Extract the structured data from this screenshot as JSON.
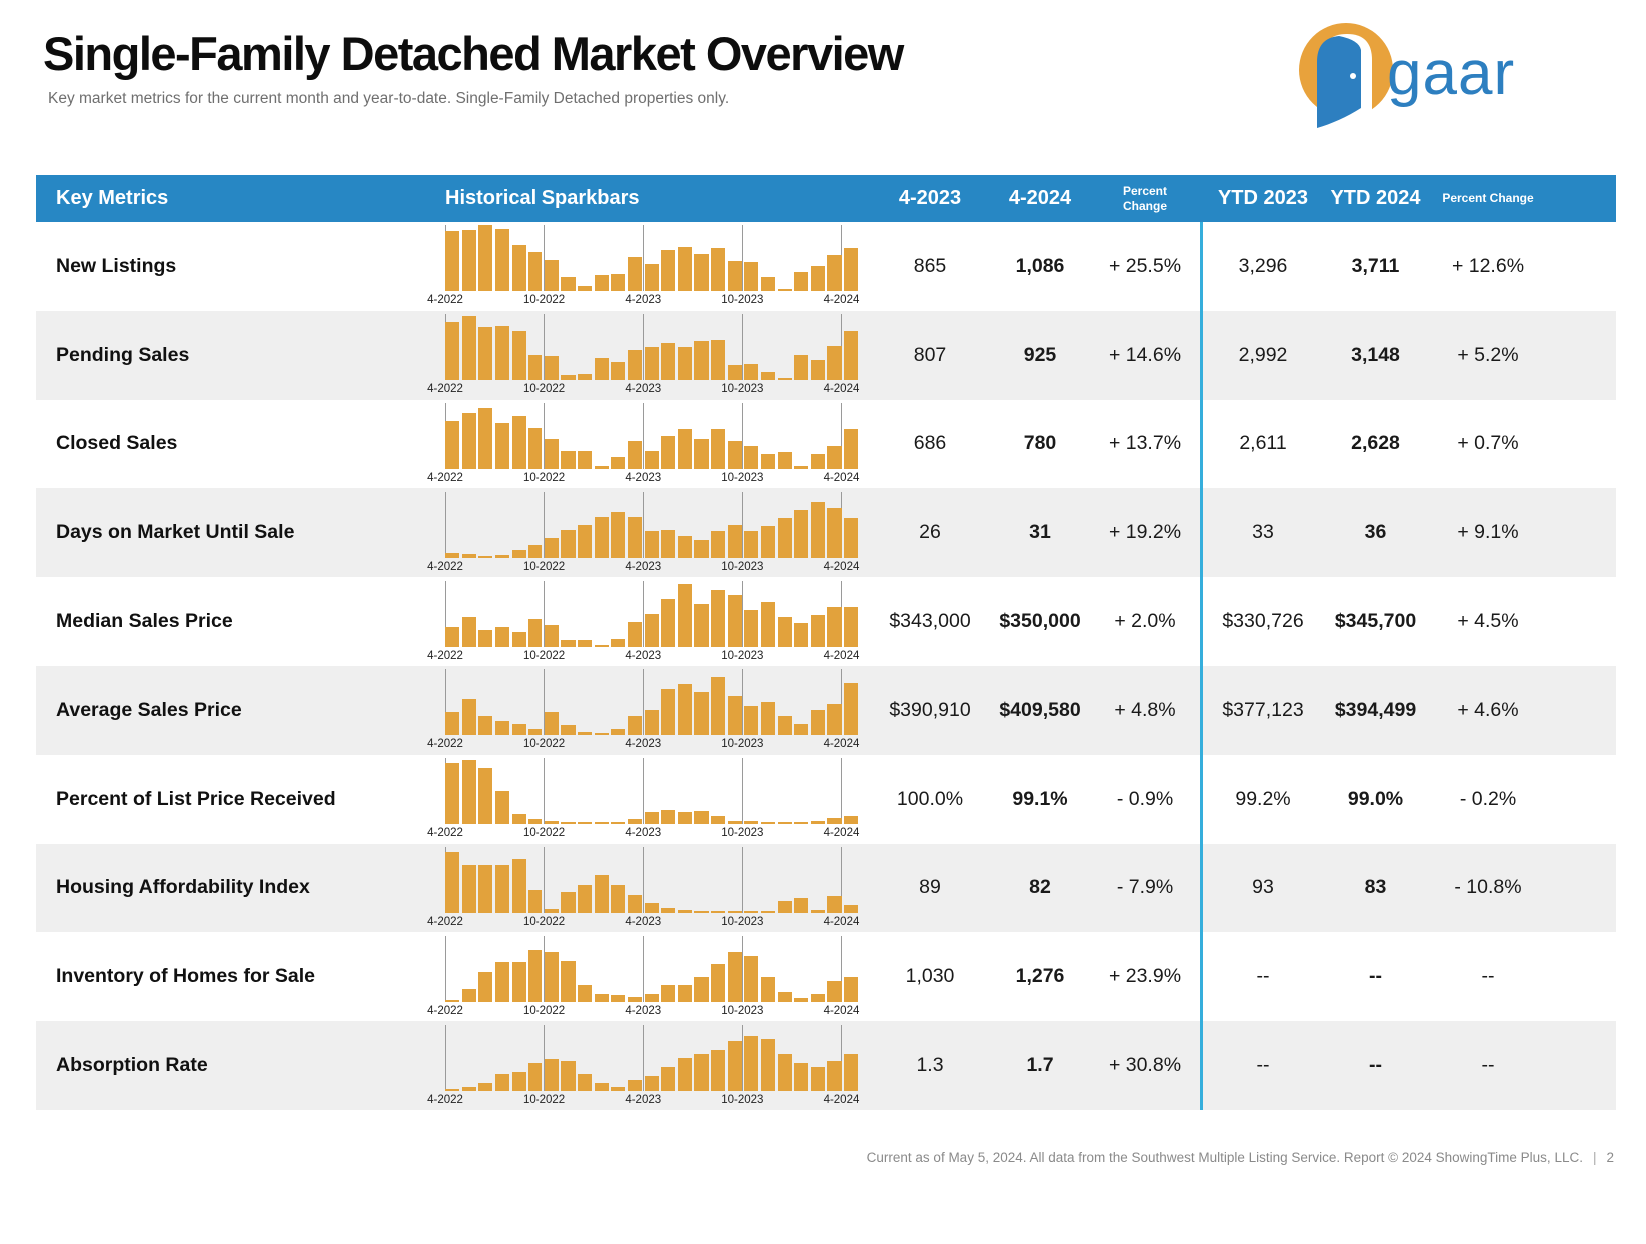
{
  "header": {
    "title": "Single-Family Detached Market Overview",
    "subtitle": "Key market metrics for the current month and year-to-date. Single-Family Detached properties only.",
    "logo_text": "gaar"
  },
  "colors": {
    "header_bg": "#2787C4",
    "bar_orange": "#E2A23C",
    "divider_cyan": "#35AEDC",
    "stripe_gray": "#EFEFEF",
    "logo_orange": "#E8A23C",
    "logo_blue": "#2D7FC0"
  },
  "table": {
    "columns": {
      "key_metrics": "Key Metrics",
      "sparkbars": "Historical Sparkbars",
      "prev_month": "4-2023",
      "cur_month": "4-2024",
      "pct_change": "Percent Change",
      "ytd_prev": "YTD 2023",
      "ytd_cur": "YTD 2024",
      "ytd_pct_change": "Percent Change"
    },
    "tick_labels": [
      "4-2022",
      "10-2022",
      "4-2023",
      "10-2023",
      "4-2024"
    ],
    "rows": [
      {
        "metric": "New Listings",
        "v1": "865",
        "v2": "1,086",
        "pct": "+ 25.5%",
        "y1": "3,296",
        "y2": "3,711",
        "ypct": "+ 12.6%",
        "bars": [
          0.92,
          0.93,
          1.0,
          0.95,
          0.7,
          0.6,
          0.48,
          0.22,
          0.08,
          0.25,
          0.27,
          0.52,
          0.42,
          0.63,
          0.68,
          0.56,
          0.66,
          0.46,
          0.45,
          0.22,
          0.04,
          0.3,
          0.38,
          0.55,
          0.66
        ]
      },
      {
        "metric": "Pending Sales",
        "v1": "807",
        "v2": "925",
        "pct": "+ 14.6%",
        "y1": "2,992",
        "y2": "3,148",
        "ypct": "+ 5.2%",
        "bars": [
          0.88,
          0.97,
          0.8,
          0.82,
          0.75,
          0.38,
          0.37,
          0.08,
          0.09,
          0.33,
          0.28,
          0.46,
          0.5,
          0.57,
          0.5,
          0.6,
          0.61,
          0.23,
          0.24,
          0.12,
          0.03,
          0.38,
          0.3,
          0.52,
          0.75
        ]
      },
      {
        "metric": "Closed Sales",
        "v1": "686",
        "v2": "780",
        "pct": "+ 13.7%",
        "y1": "2,611",
        "y2": "2,628",
        "ypct": "+ 0.7%",
        "bars": [
          0.72,
          0.85,
          0.92,
          0.7,
          0.8,
          0.62,
          0.45,
          0.27,
          0.27,
          0.05,
          0.18,
          0.42,
          0.28,
          0.5,
          0.6,
          0.45,
          0.6,
          0.42,
          0.35,
          0.22,
          0.25,
          0.04,
          0.22,
          0.35,
          0.6
        ]
      },
      {
        "metric": "Days on Market Until Sale",
        "v1": "26",
        "v2": "31",
        "pct": "+ 19.2%",
        "y1": "33",
        "y2": "36",
        "ypct": "+ 9.1%",
        "bars": [
          0.08,
          0.06,
          0.02,
          0.04,
          0.12,
          0.2,
          0.3,
          0.42,
          0.5,
          0.62,
          0.7,
          0.62,
          0.4,
          0.42,
          0.33,
          0.27,
          0.4,
          0.5,
          0.4,
          0.48,
          0.6,
          0.72,
          0.85,
          0.75,
          0.6
        ]
      },
      {
        "metric": "Median Sales Price",
        "v1": "$343,000",
        "v2": "$350,000",
        "pct": "+ 2.0%",
        "y1": "$330,726",
        "y2": "$345,700",
        "ypct": "+ 4.5%",
        "bars": [
          0.3,
          0.45,
          0.25,
          0.3,
          0.22,
          0.42,
          0.32,
          0.1,
          0.1,
          0.02,
          0.12,
          0.38,
          0.5,
          0.72,
          0.95,
          0.65,
          0.85,
          0.78,
          0.55,
          0.68,
          0.45,
          0.35,
          0.48,
          0.6,
          0.6
        ]
      },
      {
        "metric": "Average Sales Price",
        "v1": "$390,910",
        "v2": "$409,580",
        "pct": "+ 4.8%",
        "y1": "$377,123",
        "y2": "$394,499",
        "ypct": "+ 4.6%",
        "bars": [
          0.35,
          0.55,
          0.3,
          0.22,
          0.18,
          0.1,
          0.35,
          0.15,
          0.05,
          0.03,
          0.1,
          0.3,
          0.38,
          0.7,
          0.78,
          0.65,
          0.88,
          0.6,
          0.45,
          0.5,
          0.3,
          0.18,
          0.38,
          0.48,
          0.8
        ]
      },
      {
        "metric": "Percent of List Price Received",
        "v1": "100.0%",
        "v2": "99.1%",
        "pct": "- 0.9%",
        "y1": "99.2%",
        "y2": "99.0%",
        "ypct": "- 0.2%",
        "bars": [
          0.93,
          0.97,
          0.85,
          0.5,
          0.15,
          0.08,
          0.05,
          0.03,
          0.02,
          0.02,
          0.03,
          0.08,
          0.18,
          0.22,
          0.18,
          0.2,
          0.12,
          0.05,
          0.05,
          0.03,
          0.02,
          0.02,
          0.05,
          0.1,
          0.12
        ]
      },
      {
        "metric": "Housing Affordability Index",
        "v1": "89",
        "v2": "82",
        "pct": "- 7.9%",
        "y1": "93",
        "y2": "83",
        "ypct": "- 10.8%",
        "bars": [
          0.92,
          0.72,
          0.72,
          0.72,
          0.82,
          0.35,
          0.06,
          0.32,
          0.42,
          0.58,
          0.42,
          0.28,
          0.15,
          0.08,
          0.04,
          0.03,
          0.03,
          0.03,
          0.03,
          0.03,
          0.18,
          0.22,
          0.04,
          0.25,
          0.12
        ]
      },
      {
        "metric": "Inventory of Homes for Sale",
        "v1": "1,030",
        "v2": "1,276",
        "pct": "+ 23.9%",
        "y1": "--",
        "y2": "--",
        "ypct": "--",
        "bars": [
          0.03,
          0.2,
          0.45,
          0.6,
          0.6,
          0.78,
          0.75,
          0.62,
          0.25,
          0.12,
          0.1,
          0.08,
          0.12,
          0.25,
          0.25,
          0.38,
          0.58,
          0.75,
          0.7,
          0.38,
          0.15,
          0.06,
          0.12,
          0.32,
          0.38
        ]
      },
      {
        "metric": "Absorption Rate",
        "v1": "1.3",
        "v2": "1.7",
        "pct": "+ 30.8%",
        "y1": "--",
        "y2": "--",
        "ypct": "--",
        "bars": [
          0.02,
          0.05,
          0.12,
          0.25,
          0.28,
          0.42,
          0.48,
          0.45,
          0.25,
          0.12,
          0.06,
          0.16,
          0.22,
          0.35,
          0.5,
          0.55,
          0.62,
          0.75,
          0.82,
          0.78,
          0.55,
          0.42,
          0.35,
          0.45,
          0.55
        ]
      }
    ]
  },
  "footer": {
    "text": "Current as of May 5, 2024. All data from the Southwest Multiple Listing Service. Report © 2024 ShowingTime Plus, LLC.",
    "page_number": "2"
  }
}
